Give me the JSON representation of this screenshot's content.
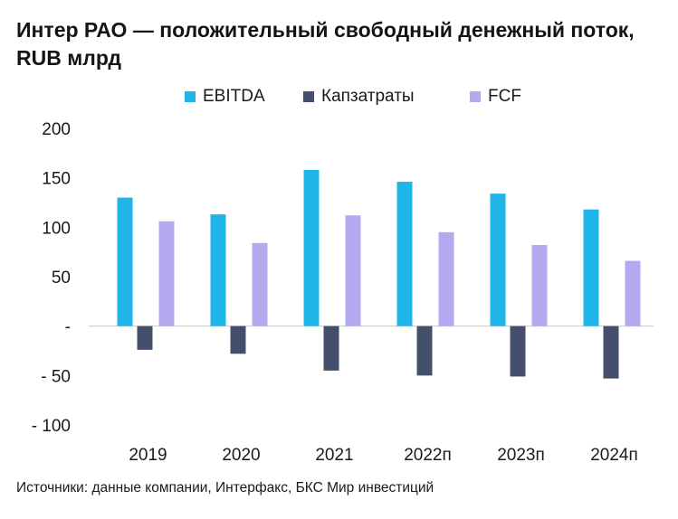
{
  "title": "Интер РАО — положительный свободный денежный поток, RUB млрд",
  "source": "Источники: данные компании, Интерфакс, БКС Мир инвестиций",
  "chart_data": {
    "type": "bar",
    "title": "Интер РАО — положительный свободный денежный поток, RUB млрд",
    "xlabel": "",
    "ylabel": "",
    "categories": [
      "2019",
      "2020",
      "2021",
      "2022п",
      "2023п",
      "2024п"
    ],
    "series": [
      {
        "name": "EBITDA",
        "color": "#1fb5e8",
        "values": [
          130,
          113,
          158,
          146,
          134,
          118
        ]
      },
      {
        "name": "Капзатраты",
        "color": "#44506b",
        "values": [
          -24,
          -28,
          -45,
          -50,
          -51,
          -53
        ]
      },
      {
        "name": "FCF",
        "color": "#b3a9ee",
        "values": [
          106,
          84,
          112,
          95,
          82,
          66
        ]
      }
    ],
    "ylim": [
      -100,
      200
    ],
    "yticks": [
      200,
      150,
      100,
      50,
      0,
      -50,
      -100
    ],
    "ytick_labels": [
      "200",
      "150",
      "100",
      "50",
      "-",
      "- 50",
      "- 100"
    ],
    "grid": false,
    "legend_position": "top"
  }
}
